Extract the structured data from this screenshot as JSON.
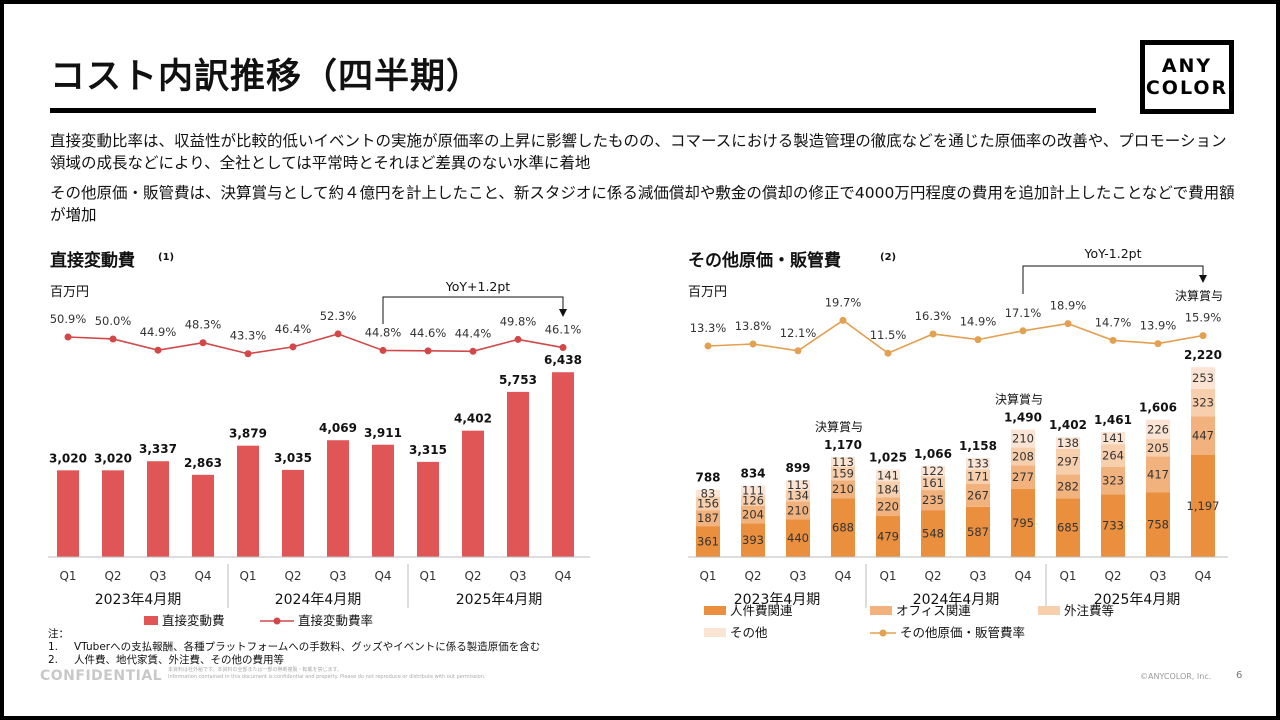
{
  "page": {
    "title": "コスト内訳推移（四半期）",
    "logo_lines": [
      "ANY",
      "COLOR"
    ],
    "paragraphs": [
      "直接変動比率は、収益性が比較的低いイベントの実施が原価率の上昇に影響したものの、コマースにおける製造管理の徹底などを通じた原価率の改善や、プロモーション領域の成長などにより、全社としては平常時とそれほど差異のない水準に着地",
      "その他原価・販管費は、決算賞与として約４億円を計上したこと、新スタジオに係る減価償却や敷金の償却の修正で4000万円程度の費用を追加計上したことなどで費用額が増加"
    ],
    "footnote_header": "注：",
    "footnotes": [
      {
        "num": "1.",
        "text": "VTuberへの支払報酬、各種プラットフォームへの手数料、グッズやイベントに係る製造原価を含む"
      },
      {
        "num": "2.",
        "text": "人件費、地代家賃、外注費、その他の費用等"
      }
    ],
    "confidential": "CONFIDENTIAL",
    "fine_print_1": "本資料は社外秘です。本資料の全部または一部の無断複製・転載を禁じます。",
    "fine_print_2": "Information contained in this document is confidential and property. Please do not reproduce or distribute with out permission.",
    "copyright": "©ANYCOLOR, Inc.",
    "page_number": "6"
  },
  "colors": {
    "red_bar": "#e05555",
    "red_line": "#d24848",
    "personnel": "#e98f3e",
    "office": "#f2b27d",
    "outsourcing": "#f7cfad",
    "other": "#fbe4d3",
    "orange_line": "#e3a050"
  },
  "chart_data": [
    {
      "type": "bar",
      "title": "直接変動費",
      "title_note": "(1)",
      "unit_label": "百万円",
      "categories": [
        "Q1",
        "Q2",
        "Q3",
        "Q4",
        "Q1",
        "Q2",
        "Q3",
        "Q4",
        "Q1",
        "Q2",
        "Q3",
        "Q4"
      ],
      "fiscal_years": [
        "2023年4月期",
        "2024年4月期",
        "2025年4月期"
      ],
      "series": [
        {
          "name": "直接変動費",
          "values": [
            3020,
            3020,
            3337,
            2863,
            3879,
            3035,
            4069,
            3911,
            3315,
            4402,
            5753,
            6438
          ]
        },
        {
          "name": "直接変動費率",
          "kind": "line",
          "values": [
            50.9,
            50.0,
            44.9,
            48.3,
            43.3,
            46.4,
            52.3,
            44.8,
            44.6,
            44.4,
            49.8,
            46.1
          ]
        }
      ],
      "bar_labels": [
        "3,020",
        "3,020",
        "3,337",
        "2,863",
        "3,879",
        "3,035",
        "4,069",
        "3,911",
        "3,315",
        "4,402",
        "5,753",
        "6,438"
      ],
      "rate_labels": [
        "50.9%",
        "50.0%",
        "44.9%",
        "48.3%",
        "43.3%",
        "46.4%",
        "52.3%",
        "44.8%",
        "44.6%",
        "44.4%",
        "49.8%",
        "46.1%"
      ],
      "annotation": {
        "text": "YoY+1.2pt",
        "from_index": 7,
        "to_index": 11
      },
      "legend": [
        "直接変動費",
        "直接変動費率"
      ]
    },
    {
      "type": "bar",
      "stacked": true,
      "title": "その他原価・販管費",
      "title_note": "(2)",
      "unit_label": "百万円",
      "categories": [
        "Q1",
        "Q2",
        "Q3",
        "Q4",
        "Q1",
        "Q2",
        "Q3",
        "Q4",
        "Q1",
        "Q2",
        "Q3",
        "Q4"
      ],
      "fiscal_years": [
        "2023年4月期",
        "2024年4月期",
        "2025年4月期"
      ],
      "series": [
        {
          "name": "人件費関連",
          "values": [
            361,
            393,
            440,
            688,
            479,
            548,
            587,
            795,
            685,
            733,
            758,
            1197
          ]
        },
        {
          "name": "オフィス関連",
          "values": [
            187,
            204,
            210,
            210,
            220,
            235,
            267,
            277,
            282,
            323,
            417,
            447
          ]
        },
        {
          "name": "外注費等",
          "values": [
            156,
            126,
            134,
            159,
            184,
            161,
            171,
            208,
            297,
            264,
            205,
            323
          ]
        },
        {
          "name": "その他",
          "values": [
            83,
            111,
            115,
            113,
            141,
            122,
            133,
            210,
            138,
            141,
            226,
            253
          ]
        },
        {
          "name": "その他原価・販管費率",
          "kind": "line",
          "values": [
            13.3,
            13.8,
            12.1,
            19.7,
            11.5,
            16.3,
            14.9,
            17.1,
            18.9,
            14.7,
            13.9,
            15.9
          ]
        }
      ],
      "segment_labels": [
        [
          "361",
          "393",
          "440",
          "688",
          "479",
          "548",
          "587",
          "795",
          "685",
          "733",
          "758",
          "1,197"
        ],
        [
          "187",
          "204",
          "210",
          "210",
          "220",
          "235",
          "267",
          "277",
          "282",
          "323",
          "417",
          "447"
        ],
        [
          "156",
          "126",
          "134",
          "159",
          "184",
          "161",
          "171",
          "208",
          "297",
          "264",
          "205",
          "323"
        ],
        [
          "83",
          "111",
          "115",
          "113",
          "141",
          "122",
          "133",
          "210",
          "138",
          "141",
          "226",
          "253"
        ]
      ],
      "totals": [
        788,
        834,
        899,
        1170,
        1025,
        1066,
        1158,
        1490,
        1402,
        1461,
        1606,
        2220
      ],
      "total_labels": [
        "788",
        "834",
        "899",
        "1,170",
        "1,025",
        "1,066",
        "1,158",
        "1,490",
        "1,402",
        "1,461",
        "1,606",
        "2,220"
      ],
      "rate_labels": [
        "13.3%",
        "13.8%",
        "12.1%",
        "19.7%",
        "11.5%",
        "16.3%",
        "14.9%",
        "17.1%",
        "18.9%",
        "14.7%",
        "13.9%",
        "15.9%"
      ],
      "bonus_label": "決算賞与",
      "bonus_indices": [
        3,
        7,
        11
      ],
      "annotation": {
        "text": "YoY-1.2pt",
        "from_index": 7,
        "to_index": 11
      },
      "legend": [
        "人件費関連",
        "オフィス関連",
        "外注費等",
        "その他",
        "その他原価・販管費率"
      ]
    }
  ]
}
